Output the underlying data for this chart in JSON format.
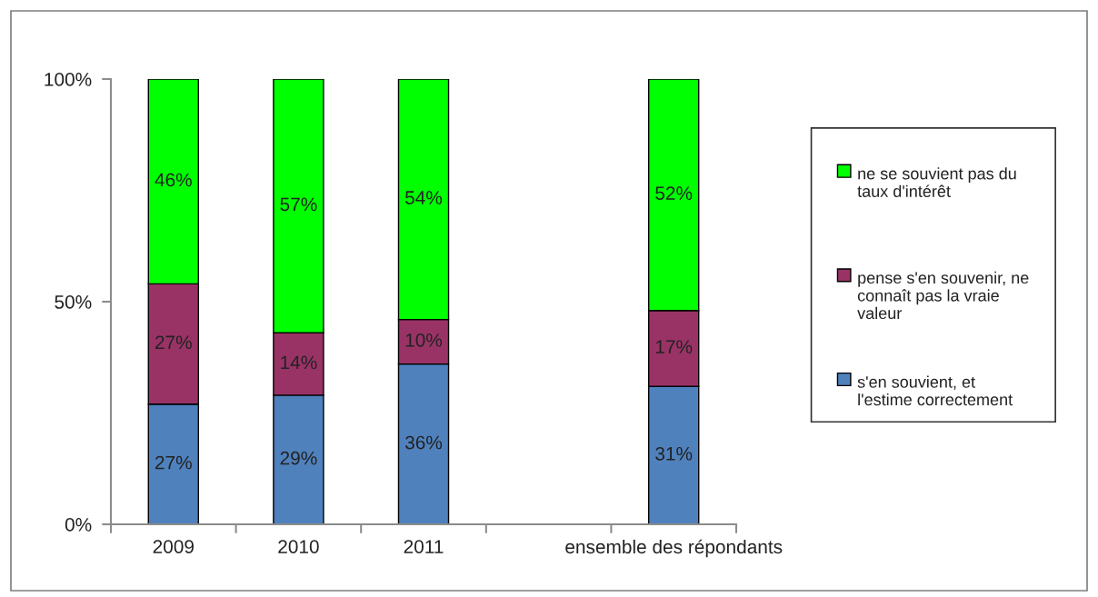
{
  "chart_data": {
    "type": "bar",
    "stacked": true,
    "categories": [
      "2009",
      "2010",
      "2011",
      null,
      "ensemble des répondants"
    ],
    "series": [
      {
        "name": "s'en souvient, et l'estime correctement",
        "color": "#4f81bd",
        "values": [
          27,
          29,
          36,
          null,
          31
        ],
        "value_labels": [
          "27%",
          "29%",
          "36%",
          null,
          "31%"
        ]
      },
      {
        "name": "pense s'en souvenir, ne connaît pas la vraie valeur",
        "color": "#993366",
        "values": [
          27,
          14,
          10,
          null,
          17
        ],
        "value_labels": [
          "27%",
          "14%",
          "10%",
          null,
          "17%"
        ]
      },
      {
        "name": "ne se souvient pas du taux d'intérêt",
        "color": "#00ff00",
        "values": [
          46,
          57,
          54,
          null,
          52
        ],
        "value_labels": [
          "46%",
          "57%",
          "54%",
          null,
          "52%"
        ]
      }
    ],
    "ylim": [
      0,
      100
    ],
    "yticks": [
      {
        "value": 0,
        "label": "0%"
      },
      {
        "value": 50,
        "label": "50%"
      },
      {
        "value": 100,
        "label": "100%"
      }
    ],
    "legend": "right",
    "grid": false
  }
}
